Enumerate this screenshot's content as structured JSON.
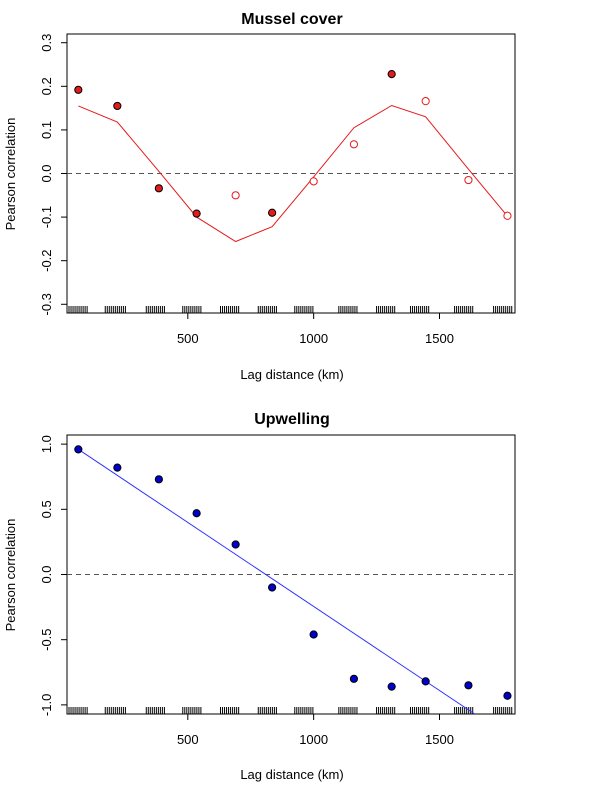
{
  "chart_data": [
    {
      "type": "scatter",
      "title": "Mussel cover",
      "xlabel": "Lag distance (km)",
      "ylabel": "Pearson correlation",
      "xlim": [
        20,
        1800
      ],
      "ylim": [
        -0.32,
        0.32
      ],
      "xticks": [
        500,
        1000,
        1500
      ],
      "yticks": [
        -0.3,
        -0.2,
        -0.1,
        0.0,
        0.1,
        0.2,
        0.3
      ],
      "xtick_labels": [
        "500",
        "1000",
        "1500"
      ],
      "ytick_labels": [
        "-0.3",
        "-0.2",
        "-0.1",
        "0.0",
        "0.1",
        "0.2",
        "0.3"
      ],
      "reference_line": 0,
      "accent_color": "#e41a1c",
      "points": [
        {
          "x": 65,
          "y": 0.192,
          "filled": true
        },
        {
          "x": 220,
          "y": 0.155,
          "filled": true
        },
        {
          "x": 385,
          "y": -0.034,
          "filled": true
        },
        {
          "x": 535,
          "y": -0.092,
          "filled": true
        },
        {
          "x": 690,
          "y": -0.05,
          "filled": false
        },
        {
          "x": 835,
          "y": -0.09,
          "filled": true
        },
        {
          "x": 1000,
          "y": -0.018,
          "filled": false
        },
        {
          "x": 1160,
          "y": 0.067,
          "filled": false
        },
        {
          "x": 1310,
          "y": 0.228,
          "filled": true
        },
        {
          "x": 1445,
          "y": 0.166,
          "filled": false
        },
        {
          "x": 1615,
          "y": -0.015,
          "filled": false
        },
        {
          "x": 1770,
          "y": -0.097,
          "filled": false
        }
      ],
      "fit_line": [
        {
          "x": 65,
          "y": 0.155
        },
        {
          "x": 220,
          "y": 0.118
        },
        {
          "x": 385,
          "y": 0.005
        },
        {
          "x": 535,
          "y": -0.1
        },
        {
          "x": 690,
          "y": -0.156
        },
        {
          "x": 835,
          "y": -0.122
        },
        {
          "x": 1000,
          "y": -0.008
        },
        {
          "x": 1160,
          "y": 0.105
        },
        {
          "x": 1310,
          "y": 0.156
        },
        {
          "x": 1445,
          "y": 0.13
        },
        {
          "x": 1615,
          "y": 0.01
        },
        {
          "x": 1770,
          "y": -0.098
        }
      ],
      "rug_x": [
        20,
        28,
        36,
        44,
        52,
        60,
        68,
        76,
        84,
        92,
        100,
        172,
        180,
        188,
        196,
        204,
        212,
        220,
        228,
        236,
        244,
        252,
        335,
        343,
        351,
        359,
        367,
        375,
        383,
        391,
        399,
        407,
        480,
        488,
        496,
        504,
        512,
        520,
        528,
        536,
        544,
        552,
        630,
        638,
        646,
        654,
        662,
        670,
        678,
        686,
        694,
        702,
        780,
        788,
        796,
        804,
        812,
        820,
        828,
        836,
        844,
        852,
        925,
        933,
        941,
        949,
        957,
        965,
        973,
        981,
        989,
        997,
        1100,
        1108,
        1116,
        1124,
        1132,
        1140,
        1148,
        1156,
        1164,
        1172,
        1250,
        1258,
        1266,
        1274,
        1282,
        1290,
        1298,
        1306,
        1314,
        1322,
        1385,
        1393,
        1401,
        1409,
        1417,
        1425,
        1433,
        1441,
        1449,
        1457,
        1560,
        1568,
        1576,
        1584,
        1592,
        1600,
        1608,
        1616,
        1624,
        1632,
        1715,
        1723,
        1731,
        1739,
        1747,
        1755,
        1763,
        1771,
        1779,
        1787
      ]
    },
    {
      "type": "scatter",
      "title": "Upwelling",
      "xlabel": "Lag distance (km)",
      "ylabel": "Pearson correlation",
      "xlim": [
        20,
        1800
      ],
      "ylim": [
        -1.07,
        1.07
      ],
      "xticks": [
        500,
        1000,
        1500
      ],
      "yticks": [
        -1.0,
        -0.5,
        0.0,
        0.5,
        1.0
      ],
      "xtick_labels": [
        "500",
        "1000",
        "1500"
      ],
      "ytick_labels": [
        "-1.0",
        "-0.5",
        "0.0",
        "0.5",
        "1.0"
      ],
      "reference_line": 0,
      "accent_color": "#0000cc",
      "line_color": "#3333ff",
      "points": [
        {
          "x": 65,
          "y": 0.96,
          "filled": true
        },
        {
          "x": 220,
          "y": 0.82,
          "filled": true
        },
        {
          "x": 385,
          "y": 0.73,
          "filled": true
        },
        {
          "x": 535,
          "y": 0.47,
          "filled": true
        },
        {
          "x": 690,
          "y": 0.23,
          "filled": true
        },
        {
          "x": 835,
          "y": -0.1,
          "filled": true
        },
        {
          "x": 1000,
          "y": -0.46,
          "filled": true
        },
        {
          "x": 1160,
          "y": -0.8,
          "filled": true
        },
        {
          "x": 1310,
          "y": -0.86,
          "filled": true
        },
        {
          "x": 1445,
          "y": -0.82,
          "filled": true
        },
        {
          "x": 1615,
          "y": -0.85,
          "filled": true
        },
        {
          "x": 1770,
          "y": -0.93,
          "filled": true
        }
      ],
      "fit_line": [
        {
          "x": 65,
          "y": 0.96
        },
        {
          "x": 1640,
          "y": -1.07
        }
      ],
      "rug_x": [
        20,
        28,
        36,
        44,
        52,
        60,
        68,
        76,
        84,
        92,
        100,
        172,
        180,
        188,
        196,
        204,
        212,
        220,
        228,
        236,
        244,
        252,
        335,
        343,
        351,
        359,
        367,
        375,
        383,
        391,
        399,
        407,
        480,
        488,
        496,
        504,
        512,
        520,
        528,
        536,
        544,
        552,
        630,
        638,
        646,
        654,
        662,
        670,
        678,
        686,
        694,
        702,
        780,
        788,
        796,
        804,
        812,
        820,
        828,
        836,
        844,
        852,
        925,
        933,
        941,
        949,
        957,
        965,
        973,
        981,
        989,
        997,
        1100,
        1108,
        1116,
        1124,
        1132,
        1140,
        1148,
        1156,
        1164,
        1172,
        1250,
        1258,
        1266,
        1274,
        1282,
        1290,
        1298,
        1306,
        1314,
        1322,
        1385,
        1393,
        1401,
        1409,
        1417,
        1425,
        1433,
        1441,
        1449,
        1457,
        1560,
        1568,
        1576,
        1584,
        1592,
        1600,
        1608,
        1616,
        1624,
        1632,
        1715,
        1723,
        1731,
        1739,
        1747,
        1755,
        1763,
        1771,
        1779,
        1787
      ]
    }
  ]
}
